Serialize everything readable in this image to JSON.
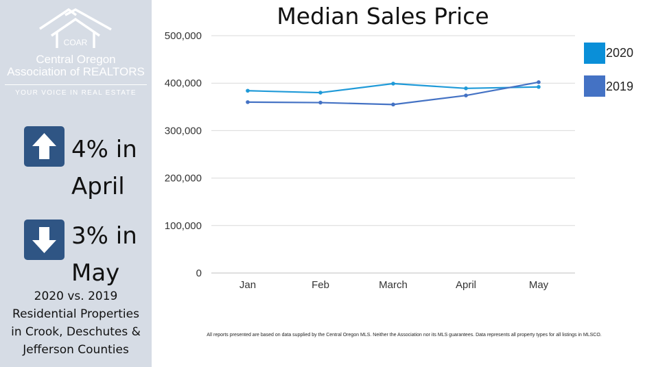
{
  "sidebar": {
    "logo_text": "COAR",
    "org_line1": "Central Oregon",
    "org_line2": "Association of REALTORS",
    "tagline": "YOUR VOICE IN REAL ESTATE",
    "stat1": {
      "icon": "arrow-up-icon",
      "line1": "4% in",
      "line2": "April"
    },
    "stat2": {
      "icon": "arrow-down-icon",
      "line1": "3% in",
      "line2": "May"
    },
    "note": [
      "2020 vs. 2019",
      "Residential Properties",
      "in Crook, Deschutes &",
      "Jefferson Counties"
    ]
  },
  "disclaimer": "All reports presented are based on data supplied by the Central Oregon MLS. Neither the Association nor its MLS guarantees. Data represents all property types for all listings in MLSCO.",
  "chart_data": {
    "type": "line",
    "title": "Median Sales Price",
    "categories": [
      "Jan",
      "Feb",
      "March",
      "April",
      "May"
    ],
    "yticks": [
      "0",
      "100,000",
      "200,000",
      "300,000",
      "400,000",
      "500,000"
    ],
    "ylim": [
      0,
      500000
    ],
    "grid": true,
    "legend_position": "right",
    "series": [
      {
        "name": "2020",
        "color": "#1f9ad8",
        "values": [
          384000,
          380000,
          399000,
          389000,
          392000
        ]
      },
      {
        "name": "2019",
        "color": "#4472c4",
        "values": [
          360000,
          359000,
          355000,
          374000,
          402000
        ]
      }
    ]
  }
}
